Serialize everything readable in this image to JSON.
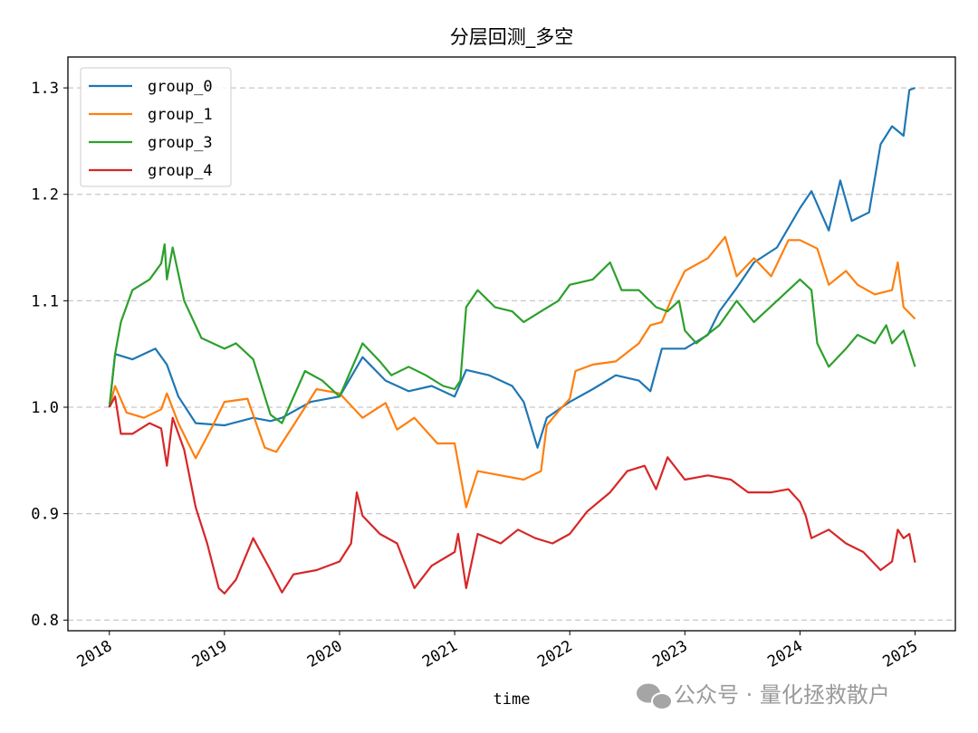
{
  "chart_data": {
    "type": "line",
    "title": "分层回测_多空",
    "xlabel": "time",
    "ylabel": "",
    "xlim": [
      2017.64,
      2025.35
    ],
    "ylim": [
      0.79,
      1.329
    ],
    "xticks": [
      2018,
      2019,
      2020,
      2021,
      2022,
      2023,
      2024,
      2025
    ],
    "xtick_labels": [
      "2018",
      "2019",
      "2020",
      "2021",
      "2022",
      "2023",
      "2024",
      "2025"
    ],
    "yticks": [
      0.8,
      0.9,
      1.0,
      1.1,
      1.2,
      1.3
    ],
    "ytick_labels": [
      "0.8",
      "0.9",
      "1.0",
      "1.1",
      "1.2",
      "1.3"
    ],
    "grid": "y-dashed",
    "legend_position": "upper-left",
    "series": [
      {
        "name": "group_0",
        "color": "#1f77b4",
        "x": [
          2018.0,
          2018.05,
          2018.2,
          2018.4,
          2018.5,
          2018.6,
          2018.75,
          2019.0,
          2019.25,
          2019.4,
          2019.5,
          2019.75,
          2020.0,
          2020.2,
          2020.4,
          2020.6,
          2020.8,
          2021.0,
          2021.1,
          2021.3,
          2021.5,
          2021.6,
          2021.72,
          2021.8,
          2022.0,
          2022.2,
          2022.4,
          2022.6,
          2022.7,
          2022.8,
          2023.0,
          2023.2,
          2023.3,
          2023.45,
          2023.6,
          2023.8,
          2024.0,
          2024.1,
          2024.25,
          2024.35,
          2024.45,
          2024.6,
          2024.7,
          2024.8,
          2024.9,
          2024.95,
          2025.0
        ],
        "y": [
          1.0,
          1.05,
          1.045,
          1.055,
          1.04,
          1.01,
          0.985,
          0.983,
          0.99,
          0.987,
          0.99,
          1.005,
          1.01,
          1.047,
          1.025,
          1.015,
          1.02,
          1.01,
          1.035,
          1.03,
          1.02,
          1.005,
          0.962,
          0.99,
          1.005,
          1.017,
          1.03,
          1.025,
          1.015,
          1.055,
          1.055,
          1.068,
          1.09,
          1.112,
          1.136,
          1.15,
          1.187,
          1.203,
          1.166,
          1.213,
          1.175,
          1.183,
          1.247,
          1.264,
          1.255,
          1.298,
          1.3
        ]
      },
      {
        "name": "group_1",
        "color": "#ff7f0e",
        "x": [
          2018.0,
          2018.05,
          2018.15,
          2018.3,
          2018.45,
          2018.5,
          2018.6,
          2018.75,
          2018.9,
          2019.0,
          2019.2,
          2019.35,
          2019.45,
          2019.6,
          2019.8,
          2020.0,
          2020.2,
          2020.4,
          2020.5,
          2020.65,
          2020.85,
          2021.0,
          2021.1,
          2021.2,
          2021.4,
          2021.6,
          2021.75,
          2021.8,
          2021.9,
          2022.0,
          2022.05,
          2022.2,
          2022.4,
          2022.6,
          2022.7,
          2022.8,
          2022.9,
          2023.0,
          2023.2,
          2023.35,
          2023.45,
          2023.6,
          2023.75,
          2023.9,
          2024.0,
          2024.15,
          2024.25,
          2024.4,
          2024.5,
          2024.65,
          2024.8,
          2024.85,
          2024.9,
          2025.0
        ],
        "y": [
          1.0,
          1.02,
          0.995,
          0.99,
          0.998,
          1.013,
          0.985,
          0.952,
          0.983,
          1.005,
          1.008,
          0.962,
          0.958,
          0.983,
          1.017,
          1.013,
          0.99,
          1.004,
          0.979,
          0.99,
          0.966,
          0.966,
          0.906,
          0.94,
          0.936,
          0.932,
          0.94,
          0.983,
          0.996,
          1.008,
          1.034,
          1.04,
          1.043,
          1.06,
          1.077,
          1.08,
          1.106,
          1.128,
          1.14,
          1.16,
          1.123,
          1.14,
          1.123,
          1.157,
          1.157,
          1.149,
          1.115,
          1.128,
          1.115,
          1.106,
          1.11,
          1.136,
          1.094,
          1.083
        ]
      },
      {
        "name": "group_3",
        "color": "#2ca02c",
        "x": [
          2018.0,
          2018.05,
          2018.1,
          2018.2,
          2018.35,
          2018.45,
          2018.48,
          2018.5,
          2018.55,
          2018.65,
          2018.8,
          2019.0,
          2019.1,
          2019.25,
          2019.4,
          2019.5,
          2019.7,
          2019.85,
          2020.0,
          2020.2,
          2020.35,
          2020.45,
          2020.6,
          2020.75,
          2020.9,
          2021.0,
          2021.05,
          2021.1,
          2021.2,
          2021.35,
          2021.5,
          2021.6,
          2021.75,
          2021.9,
          2022.0,
          2022.2,
          2022.35,
          2022.45,
          2022.6,
          2022.75,
          2022.85,
          2022.95,
          2023.0,
          2023.1,
          2023.3,
          2023.45,
          2023.6,
          2023.8,
          2024.0,
          2024.1,
          2024.15,
          2024.25,
          2024.4,
          2024.5,
          2024.65,
          2024.75,
          2024.8,
          2024.9,
          2025.0
        ],
        "y": [
          1.0,
          1.05,
          1.08,
          1.11,
          1.12,
          1.135,
          1.153,
          1.12,
          1.15,
          1.1,
          1.065,
          1.055,
          1.06,
          1.045,
          0.993,
          0.985,
          1.034,
          1.025,
          1.01,
          1.06,
          1.043,
          1.03,
          1.038,
          1.03,
          1.02,
          1.017,
          1.025,
          1.094,
          1.11,
          1.094,
          1.09,
          1.08,
          1.09,
          1.1,
          1.115,
          1.12,
          1.136,
          1.11,
          1.11,
          1.094,
          1.09,
          1.1,
          1.072,
          1.06,
          1.077,
          1.1,
          1.08,
          1.1,
          1.12,
          1.11,
          1.06,
          1.038,
          1.055,
          1.068,
          1.06,
          1.077,
          1.06,
          1.072,
          1.038
        ]
      },
      {
        "name": "group_4",
        "color": "#d62728",
        "x": [
          2018.0,
          2018.05,
          2018.1,
          2018.2,
          2018.35,
          2018.45,
          2018.5,
          2018.55,
          2018.65,
          2018.75,
          2018.85,
          2018.95,
          2019.0,
          2019.1,
          2019.25,
          2019.4,
          2019.5,
          2019.6,
          2019.8,
          2020.0,
          2020.1,
          2020.15,
          2020.2,
          2020.35,
          2020.5,
          2020.65,
          2020.8,
          2021.0,
          2021.03,
          2021.1,
          2021.2,
          2021.4,
          2021.55,
          2021.7,
          2021.85,
          2022.0,
          2022.15,
          2022.35,
          2022.5,
          2022.65,
          2022.75,
          2022.85,
          2023.0,
          2023.2,
          2023.4,
          2023.55,
          2023.75,
          2023.9,
          2024.0,
          2024.05,
          2024.1,
          2024.25,
          2024.4,
          2024.55,
          2024.7,
          2024.8,
          2024.85,
          2024.9,
          2024.95,
          2025.0
        ],
        "y": [
          1.0,
          1.01,
          0.975,
          0.975,
          0.985,
          0.98,
          0.945,
          0.99,
          0.96,
          0.906,
          0.872,
          0.83,
          0.825,
          0.838,
          0.877,
          0.847,
          0.826,
          0.843,
          0.847,
          0.855,
          0.872,
          0.92,
          0.898,
          0.881,
          0.872,
          0.83,
          0.851,
          0.864,
          0.881,
          0.83,
          0.881,
          0.872,
          0.885,
          0.877,
          0.872,
          0.881,
          0.902,
          0.92,
          0.94,
          0.945,
          0.923,
          0.953,
          0.932,
          0.936,
          0.932,
          0.92,
          0.92,
          0.923,
          0.911,
          0.898,
          0.877,
          0.885,
          0.872,
          0.864,
          0.847,
          0.855,
          0.885,
          0.877,
          0.881,
          0.854
        ]
      }
    ]
  },
  "watermark": {
    "text": "公众号 · 量化拯救散户",
    "icon": "wechat-icon"
  }
}
